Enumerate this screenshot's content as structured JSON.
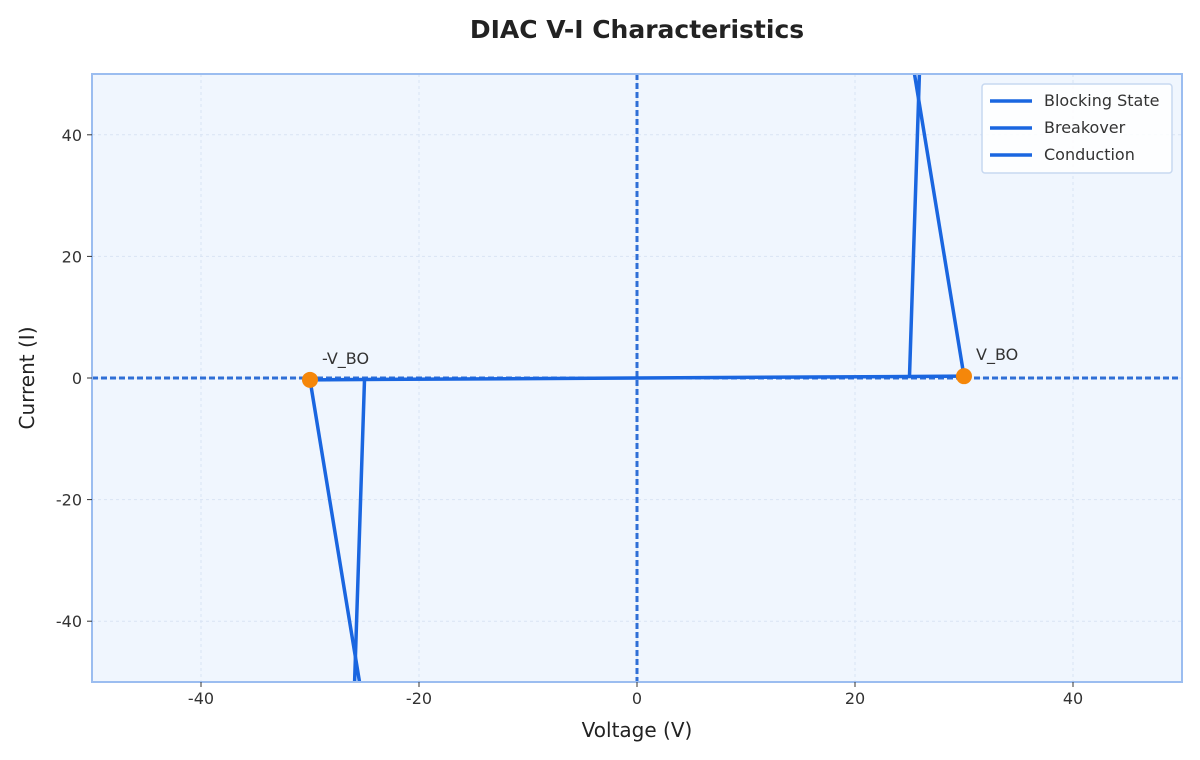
{
  "chart_data": {
    "type": "line",
    "title": "DIAC V-I Characteristics",
    "xlabel": "Voltage (V)",
    "ylabel": "Current (I)",
    "xlim": [
      -50,
      50
    ],
    "ylim": [
      -50,
      50
    ],
    "xticks": [
      -40,
      -20,
      0,
      20,
      40
    ],
    "yticks": [
      -40,
      -20,
      0,
      20,
      40
    ],
    "grid": true,
    "legend_position": "top-right",
    "series": [
      {
        "name": "Blocking State",
        "color": "#1a66e0",
        "x": [
          -30,
          0,
          30
        ],
        "y": [
          -0.3,
          0,
          0.3
        ]
      },
      {
        "name": "Breakover",
        "color": "#1a66e0",
        "x": [
          -30,
          -25
        ],
        "y": [
          -0.3,
          -55
        ],
        "x2": [
          30,
          25
        ],
        "y2": [
          0.3,
          55
        ]
      },
      {
        "name": "Conduction",
        "color": "#1a66e0",
        "x": [
          -25,
          -26
        ],
        "y": [
          -0.3,
          -55
        ],
        "x2": [
          25,
          26
        ],
        "y2": [
          0.3,
          55
        ]
      }
    ],
    "points": [
      {
        "label": "-V_BO",
        "x": -30,
        "y": -0.3,
        "color": "#f5870a"
      },
      {
        "label": "V_BO",
        "x": 30,
        "y": 0.3,
        "color": "#f5870a"
      }
    ]
  },
  "colors": {
    "plot_background": "#f0f6fe",
    "frame": "#9bbdf0",
    "zero_axis": "#2f6fd6",
    "grid": "#d9e4f4"
  }
}
